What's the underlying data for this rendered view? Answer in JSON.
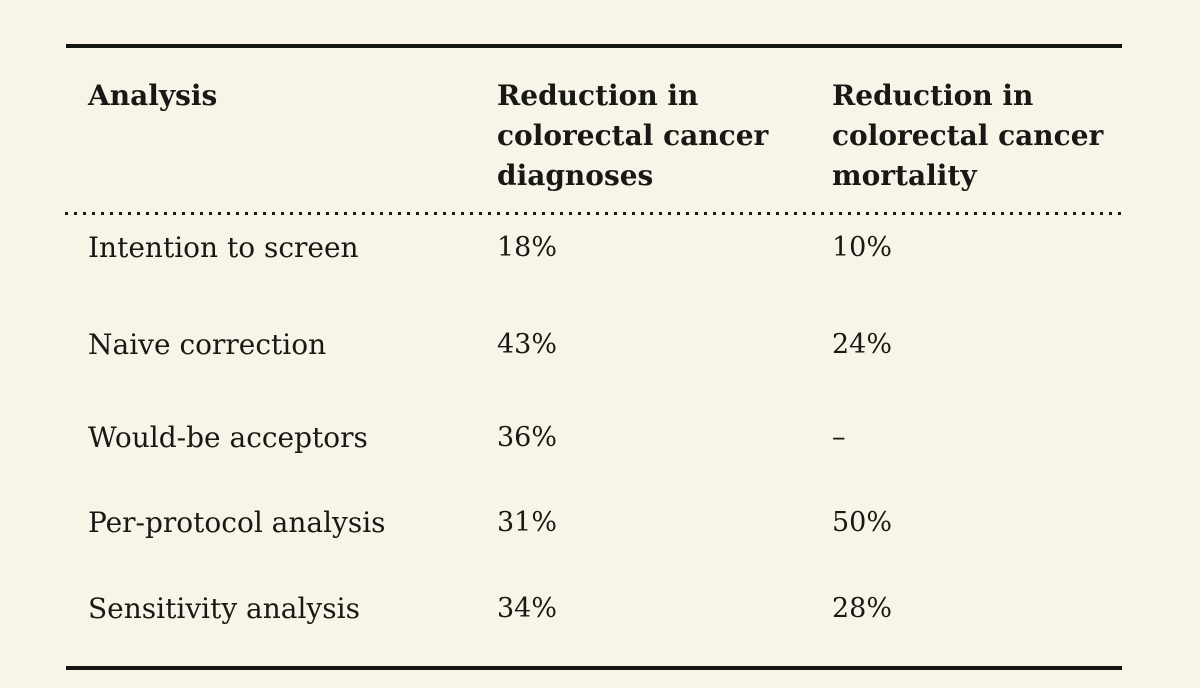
{
  "table": {
    "columns": [
      {
        "label": "Analysis"
      },
      {
        "label": "Reduction in\ncolorectal cancer\ndiagnoses"
      },
      {
        "label": "Reduction in\ncolorectal cancer\nmortality"
      }
    ],
    "rows": [
      {
        "analysis": "Intention to screen",
        "diagnoses": "18%",
        "mortality": "10%"
      },
      {
        "analysis": "Naive correction",
        "diagnoses": "43%",
        "mortality": "24%"
      },
      {
        "analysis": "Would-be acceptors",
        "diagnoses": "36%",
        "mortality": "–"
      },
      {
        "analysis": "Per-protocol analysis",
        "diagnoses": "31%",
        "mortality": "50%"
      },
      {
        "analysis": "Sensitivity analysis",
        "diagnoses": "34%",
        "mortality": "28%"
      }
    ],
    "colors": {
      "background": "#f9f4e8",
      "text": "#181814",
      "rule": "#141412"
    }
  },
  "chart_data": {
    "type": "table",
    "title": "",
    "columns": [
      "Analysis",
      "Reduction in colorectal cancer diagnoses",
      "Reduction in colorectal cancer mortality"
    ],
    "rows": [
      [
        "Intention to screen",
        "18%",
        "10%"
      ],
      [
        "Naive correction",
        "43%",
        "24%"
      ],
      [
        "Would-be acceptors",
        "36%",
        "–"
      ],
      [
        "Per-protocol analysis",
        "31%",
        "50%"
      ],
      [
        "Sensitivity analysis",
        "34%",
        "28%"
      ]
    ],
    "series": [
      {
        "name": "Reduction in colorectal cancer diagnoses (%)",
        "values": [
          18,
          43,
          36,
          31,
          34
        ]
      },
      {
        "name": "Reduction in colorectal cancer mortality (%)",
        "values": [
          10,
          24,
          null,
          50,
          28
        ]
      }
    ],
    "categories": [
      "Intention to screen",
      "Naive correction",
      "Would-be acceptors",
      "Per-protocol analysis",
      "Sensitivity analysis"
    ],
    "layout": {
      "top_rule": true,
      "bottom_rule": true,
      "dotted_header_separator": true,
      "background": "#f9f4e8"
    }
  }
}
